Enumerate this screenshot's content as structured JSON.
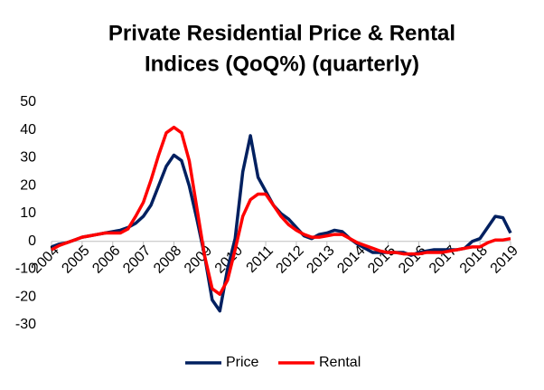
{
  "chart_data": {
    "type": "line",
    "title": [
      "Private Residential Price & Rental",
      "Indices (QoQ%) (quarterly)"
    ],
    "x": [
      2004,
      2004.25,
      2004.5,
      2004.75,
      2005,
      2005.25,
      2005.5,
      2005.75,
      2006,
      2006.25,
      2006.5,
      2006.75,
      2007,
      2007.25,
      2007.5,
      2007.75,
      2008,
      2008.25,
      2008.5,
      2008.75,
      2009,
      2009.25,
      2009.5,
      2009.75,
      2010,
      2010.25,
      2010.5,
      2010.75,
      2011,
      2011.25,
      2011.5,
      2011.75,
      2012,
      2012.25,
      2012.5,
      2012.75,
      2013,
      2013.25,
      2013.5,
      2013.75,
      2014,
      2014.25,
      2014.5,
      2014.75,
      2015,
      2015.25,
      2015.5,
      2015.75,
      2016,
      2016.25,
      2016.5,
      2016.75,
      2017,
      2017.25,
      2017.5,
      2017.75,
      2018,
      2018.25,
      2018.5,
      2018.75,
      2019
    ],
    "series": [
      {
        "name": "Price",
        "color": "#002060",
        "values": [
          -2,
          -1,
          -0.5,
          0.5,
          1.5,
          2,
          2.5,
          3,
          3.5,
          4,
          5,
          6.5,
          9,
          13,
          20,
          27,
          31,
          29,
          20,
          8,
          -5,
          -21,
          -25,
          -10,
          1,
          25,
          38,
          23,
          18,
          13,
          10,
          8,
          5,
          2,
          1,
          2.5,
          3,
          4,
          3.5,
          1,
          -1,
          -2.5,
          -4,
          -4,
          -4,
          -4,
          -4,
          -5,
          -4,
          -3.5,
          -3,
          -3,
          -3,
          -3,
          -2.5,
          0,
          1,
          5,
          9,
          8.5,
          3
        ]
      },
      {
        "name": "Rental",
        "color": "#ff0000",
        "values": [
          -3,
          -1.5,
          -0.5,
          0.5,
          1.5,
          2,
          2.5,
          3,
          3,
          3,
          4.5,
          9,
          14,
          22,
          31,
          39,
          41,
          39,
          29,
          12,
          -5,
          -17,
          -19,
          -14,
          -3,
          9,
          15,
          17,
          17,
          13,
          9,
          6,
          4,
          2.5,
          1.5,
          1.5,
          2,
          2.5,
          2.5,
          1,
          -0.5,
          -1.5,
          -2.5,
          -3.5,
          -4,
          -4,
          -4.5,
          -4.5,
          -4.5,
          -4,
          -4,
          -4,
          -3.5,
          -3,
          -2.5,
          -2,
          -2,
          -0.5,
          0.5,
          0.5,
          1
        ]
      }
    ],
    "xlim": [
      2004,
      2019
    ],
    "xticks": [
      2004,
      2005,
      2006,
      2007,
      2008,
      2009,
      2010,
      2011,
      2012,
      2013,
      2014,
      2015,
      2016,
      2017,
      2018,
      2019
    ],
    "ylim": [
      -30,
      50
    ],
    "yticks": [
      -30,
      -20,
      -10,
      0,
      10,
      20,
      30,
      40,
      50
    ],
    "legend": "bottom"
  }
}
